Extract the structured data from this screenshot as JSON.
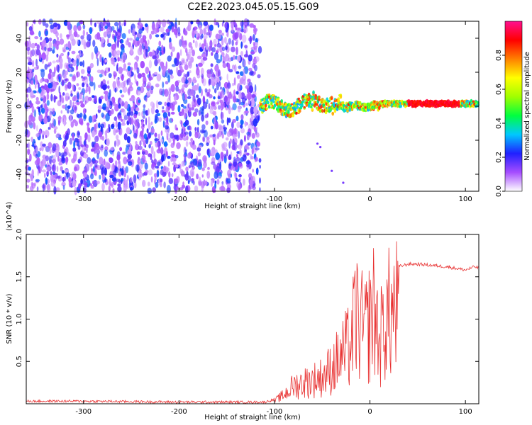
{
  "title": "C2E2.2023.045.05.15.G09",
  "chart_data": [
    {
      "type": "heatmap",
      "xlabel": "Height of straight line (km)",
      "ylabel": "Frequency (Hz)",
      "xlim": [
        -360,
        114
      ],
      "ylim": [
        -50,
        50
      ],
      "xticks": [
        -300,
        -200,
        -100,
        0,
        100
      ],
      "yticks": [
        -40,
        -20,
        0,
        20,
        40
      ],
      "colorbar": {
        "label": "Normalized spectral amplitude",
        "range": [
          0.0,
          1.0
        ],
        "ticks": [
          0.0,
          0.2,
          0.4,
          0.6,
          0.8
        ],
        "colors": [
          "#ffffff",
          "#a64dff",
          "#2020ff",
          "#00c8ff",
          "#00ff40",
          "#a0ff00",
          "#ffff00",
          "#ff8000",
          "#ff0000",
          "#ff1090"
        ]
      },
      "regions": [
        {
          "x_range": [
            -360,
            -115
          ],
          "content": "noise",
          "freq_range": [
            -50,
            50
          ],
          "amplitude": 0.1
        },
        {
          "x_range": [
            -115,
            114
          ],
          "content": "tone",
          "freq_range": [
            -6,
            8
          ],
          "amplitude": 0.9
        }
      ]
    },
    {
      "type": "line",
      "xlabel": "Height of straight line (km)",
      "ylabel": "SNR (10 * v/v)",
      "yscale_label": "(x10^4)",
      "xlim": [
        -360,
        114
      ],
      "ylim": [
        0,
        2.0
      ],
      "xticks": [
        -300,
        -200,
        -100,
        0,
        100
      ],
      "yticks": [
        0.5,
        1.0,
        1.5,
        2.0
      ],
      "color": "#e83030",
      "series": [
        {
          "x": [
            -360,
            -300,
            -200,
            -110,
            -100,
            -90,
            -80,
            -70,
            -60,
            -50,
            -40,
            -30,
            -20,
            -15,
            -10,
            -5,
            0,
            5,
            10,
            15,
            20,
            30,
            40,
            50,
            60,
            70,
            80,
            90,
            100,
            110,
            114
          ],
          "values": [
            0.03,
            0.03,
            0.02,
            0.02,
            0.05,
            0.15,
            0.3,
            0.35,
            0.4,
            0.45,
            0.6,
            0.8,
            1.0,
            1.5,
            1.3,
            1.2,
            1.4,
            1.6,
            1.0,
            1.4,
            1.5,
            1.62,
            1.65,
            1.65,
            1.64,
            1.63,
            1.62,
            1.6,
            1.58,
            1.62,
            1.6
          ]
        }
      ]
    }
  ]
}
